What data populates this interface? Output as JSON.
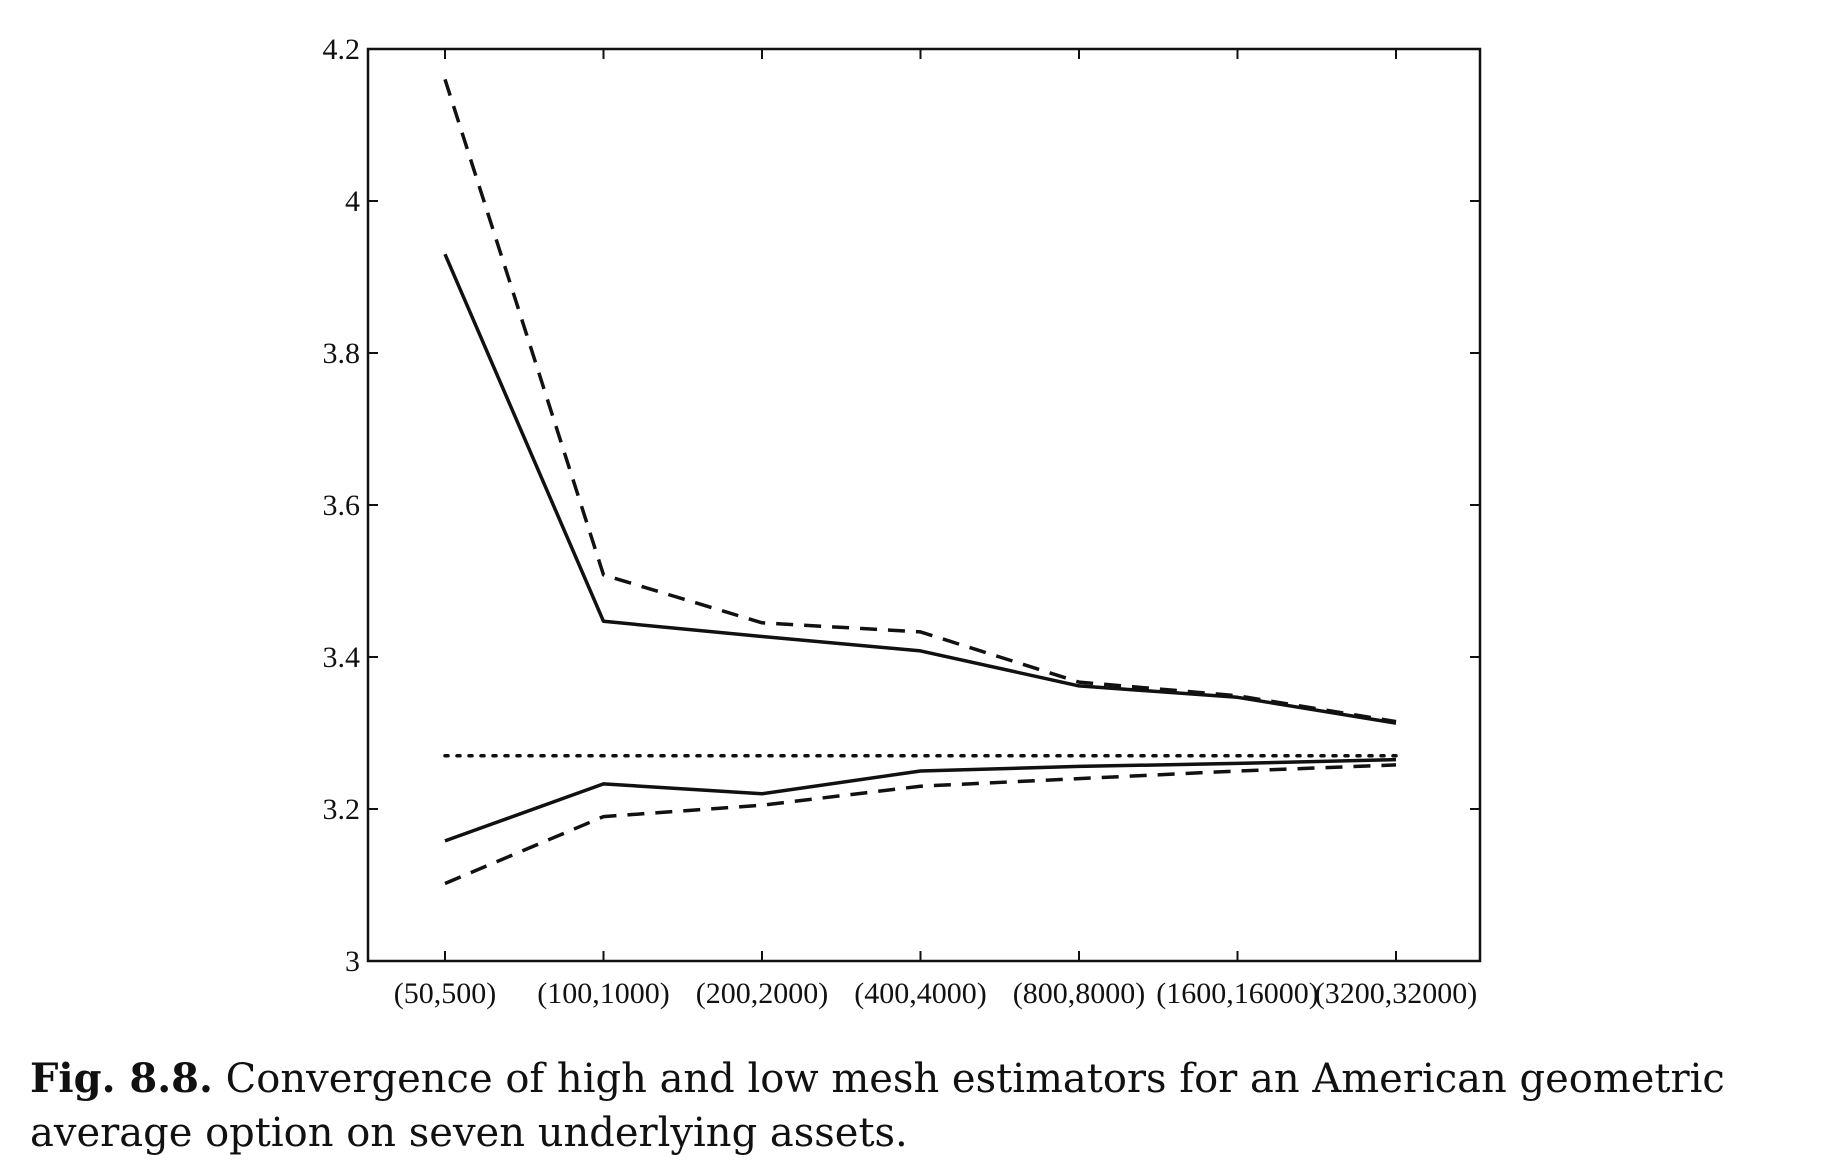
{
  "figure": {
    "label": "Fig. 8.8.",
    "caption": "Convergence of high and low mesh estimators for an American geometric average option on seven underlying assets."
  },
  "chart_data": {
    "type": "line",
    "categories": [
      "(50,500)",
      "(100,1000)",
      "(200,2000)",
      "(400,4000)",
      "(800,8000)",
      "(1600,16000)",
      "(3200,32000)"
    ],
    "ylim": [
      3,
      4.2
    ],
    "yticks": [
      3,
      3.2,
      3.4,
      3.6,
      3.8,
      4,
      4.2
    ],
    "ytick_labels": [
      "3",
      "3.2",
      "3.4",
      "3.6",
      "3.8",
      "4",
      "4.2"
    ],
    "grid": false,
    "series": [
      {
        "style": "solid",
        "values": [
          3.93,
          3.447,
          3.427,
          3.408,
          3.362,
          3.347,
          3.313
        ]
      },
      {
        "style": "dashed",
        "values": [
          4.16,
          3.508,
          3.445,
          3.433,
          3.367,
          3.349,
          3.315
        ]
      },
      {
        "style": "solid",
        "values": [
          3.158,
          3.233,
          3.22,
          3.25,
          3.256,
          3.26,
          3.265
        ]
      },
      {
        "style": "dashed",
        "values": [
          3.102,
          3.19,
          3.205,
          3.23,
          3.24,
          3.25,
          3.258
        ]
      },
      {
        "style": "dotted",
        "values": [
          3.27,
          3.27,
          3.27,
          3.27,
          3.27,
          3.27,
          3.27
        ]
      }
    ]
  }
}
